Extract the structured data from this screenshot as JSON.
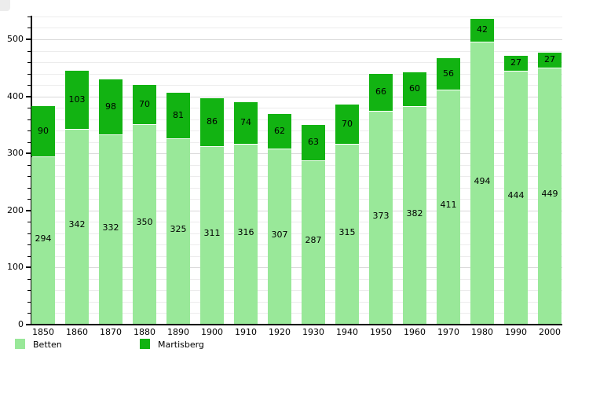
{
  "chart_data": {
    "type": "bar",
    "stacked": true,
    "title": "",
    "xlabel": "",
    "ylabel": "",
    "categories": [
      "1850",
      "1860",
      "1870",
      "1880",
      "1890",
      "1900",
      "1910",
      "1920",
      "1930",
      "1940",
      "1950",
      "1960",
      "1970",
      "1980",
      "1990",
      "2000"
    ],
    "series": [
      {
        "name": "Betten",
        "color": "#99e899",
        "values": [
          294,
          342,
          332,
          350,
          325,
          311,
          316,
          307,
          287,
          315,
          373,
          382,
          411,
          494,
          444,
          449
        ]
      },
      {
        "name": "Martisberg",
        "color": "#12b312",
        "values": [
          90,
          103,
          98,
          70,
          81,
          86,
          74,
          62,
          63,
          70,
          66,
          60,
          56,
          42,
          27,
          27
        ]
      }
    ],
    "ylim": [
      0,
      540
    ],
    "yticks": [
      0,
      100,
      200,
      300,
      400,
      500
    ],
    "grid_interval": 20,
    "grid": "on",
    "legend_position": "bottom-left",
    "value_labels": "inside-segments",
    "colors": {
      "grid_minor": "#ececec",
      "grid_major": "#d9d9d9",
      "axis": "#000000",
      "label_text": "#000000",
      "background": "#ffffff"
    }
  }
}
